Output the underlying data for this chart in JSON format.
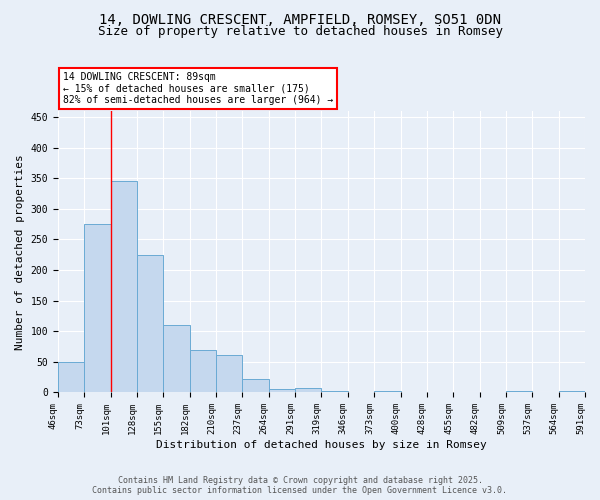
{
  "title_line1": "14, DOWLING CRESCENT, AMPFIELD, ROMSEY, SO51 0DN",
  "title_line2": "Size of property relative to detached houses in Romsey",
  "bar_values": [
    50,
    275,
    345,
    225,
    110,
    70,
    62,
    22,
    5,
    7,
    2,
    0,
    2,
    0,
    0,
    0,
    0,
    2,
    0,
    3
  ],
  "x_labels": [
    "46sqm",
    "73sqm",
    "101sqm",
    "128sqm",
    "155sqm",
    "182sqm",
    "210sqm",
    "237sqm",
    "264sqm",
    "291sqm",
    "319sqm",
    "346sqm",
    "373sqm",
    "400sqm",
    "428sqm",
    "455sqm",
    "482sqm",
    "509sqm",
    "537sqm",
    "564sqm",
    "591sqm"
  ],
  "bar_color": "#c5d8ee",
  "bar_edge_color": "#6aaad4",
  "ylabel": "Number of detached properties",
  "xlabel": "Distribution of detached houses by size in Romsey",
  "ylim": [
    0,
    460
  ],
  "yticks": [
    0,
    50,
    100,
    150,
    200,
    250,
    300,
    350,
    400,
    450
  ],
  "red_line_index": 1,
  "annotation_text": "14 DOWLING CRESCENT: 89sqm\n← 15% of detached houses are smaller (175)\n82% of semi-detached houses are larger (964) →",
  "footer_line1": "Contains HM Land Registry data © Crown copyright and database right 2025.",
  "footer_line2": "Contains public sector information licensed under the Open Government Licence v3.0.",
  "bg_color": "#e8eff8",
  "plot_bg_color": "#e8eff8",
  "grid_color": "white"
}
